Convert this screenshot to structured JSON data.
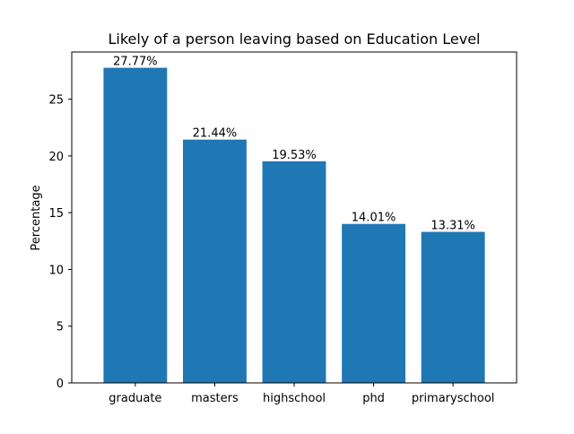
{
  "chart_data": {
    "type": "bar",
    "title": "Likely of a person leaving based on Education Level",
    "xlabel": "",
    "ylabel": "Percentage",
    "categories": [
      "graduate",
      "masters",
      "highschool",
      "phd",
      "primaryschool"
    ],
    "values": [
      27.77,
      21.44,
      19.53,
      14.01,
      13.31
    ],
    "value_labels": [
      "27.77%",
      "21.44%",
      "19.53%",
      "14.01%",
      "13.31%"
    ],
    "ylim": [
      0,
      29.16
    ],
    "yticks": [
      0,
      5,
      10,
      15,
      20,
      25
    ],
    "grid": false,
    "legend": "none",
    "bar_color": "#1f77b4"
  }
}
